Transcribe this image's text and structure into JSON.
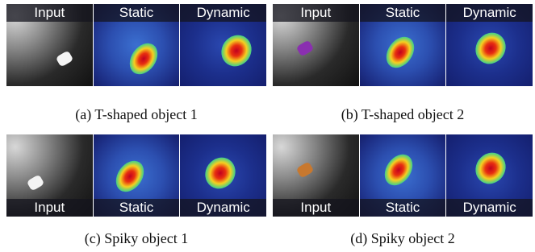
{
  "panels": [
    {
      "labels": [
        "Input",
        "Static",
        "Dynamic"
      ],
      "caption": "(a) T-shaped object 1"
    },
    {
      "labels": [
        "Input",
        "Static",
        "Dynamic"
      ],
      "caption": "(b) T-shaped object 2"
    },
    {
      "labels": [
        "Input",
        "Static",
        "Dynamic"
      ],
      "caption": "(c) Spiky object 1"
    },
    {
      "labels": [
        "Input",
        "Static",
        "Dynamic"
      ],
      "caption": "(d) Spiky object 2"
    }
  ]
}
